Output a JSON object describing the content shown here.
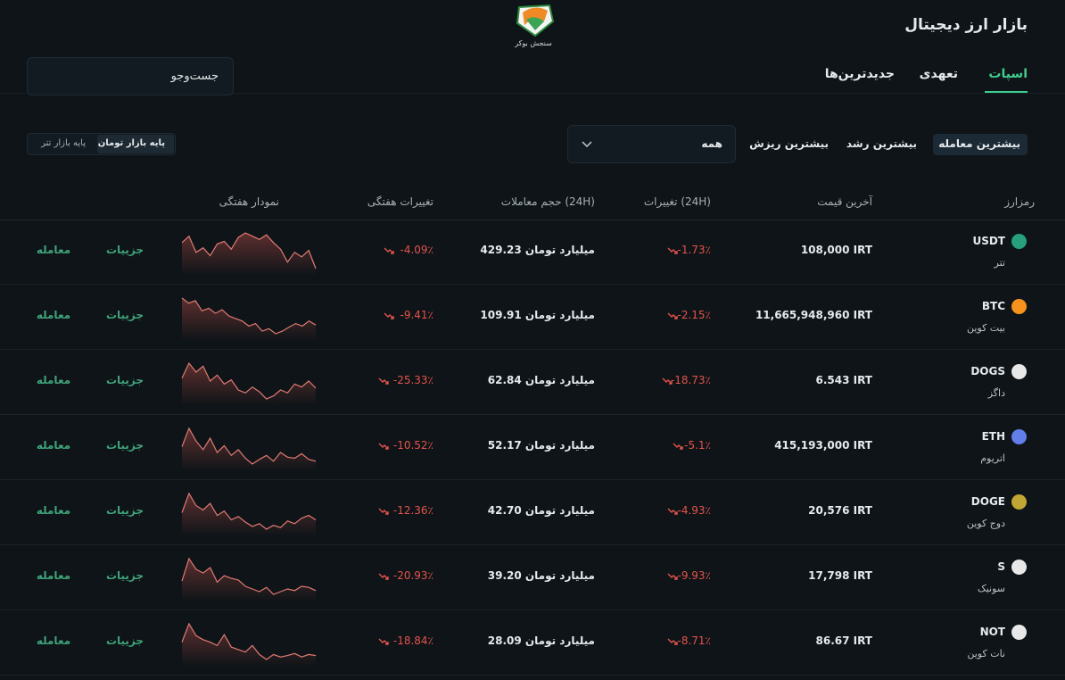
{
  "header": {
    "logo_text": "سنجش بوکر",
    "title": "بازار ارز دیجیتال"
  },
  "tabs": [
    "اسپات",
    "تعهدی",
    "جدیدترین‌ها"
  ],
  "search": {
    "placeholder": "جست‌وجو"
  },
  "filters": [
    "بیشترین معامله",
    "بیشترین رشد",
    "بیشترین ریزش"
  ],
  "dropdown": {
    "selected": "همه"
  },
  "market_toggle": [
    "پایه بازار تومان",
    "پایه بازار تتر"
  ],
  "table": {
    "headers": [
      "رمزارز",
      "آخرین قیمت",
      "تغییرات (24H)",
      "حجم معاملات (24H)",
      "تغییرات هفتگی",
      "نمودار هفتگی"
    ],
    "actions": {
      "details": "جزییات",
      "trade": "معامله"
    },
    "rows": [
      {
        "symbol": "USDT",
        "name": "تتر",
        "price": "108,000 IRT",
        "change": "-1.73٪",
        "volume": "429.23 میلیارد تومان",
        "weekly": "-4.09٪",
        "sparkline": [
          70,
          80,
          55,
          62,
          50,
          68,
          72,
          60,
          78,
          85,
          80,
          75,
          82,
          70,
          60,
          40,
          55,
          48,
          58,
          30
        ]
      },
      {
        "symbol": "BTC",
        "name": "بیت کوین",
        "price": "11,665,948,960 IRT",
        "change": "-2.15٪",
        "volume": "109.91 میلیارد تومان",
        "weekly": "-9.41٪",
        "sparkline": [
          85,
          75,
          80,
          60,
          65,
          55,
          62,
          50,
          45,
          40,
          30,
          35,
          20,
          25,
          15,
          20,
          28,
          35,
          30,
          40,
          32
        ]
      },
      {
        "symbol": "DOGS",
        "name": "داگز",
        "price": "6.543 IRT",
        "change": "-18.73٪",
        "volume": "62.84 میلیارد تومان",
        "weekly": "-25.33٪",
        "sparkline": [
          65,
          90,
          75,
          85,
          60,
          70,
          55,
          62,
          45,
          40,
          50,
          42,
          30,
          35,
          45,
          40,
          55,
          50,
          60,
          48
        ]
      },
      {
        "symbol": "ETH",
        "name": "اتریوم",
        "price": "415,193,000 IRT",
        "change": "-5.1٪",
        "volume": "52.17 میلیارد تومان",
        "weekly": "-10.52٪",
        "sparkline": [
          60,
          92,
          70,
          55,
          75,
          50,
          62,
          45,
          55,
          40,
          30,
          38,
          45,
          35,
          50,
          42,
          40,
          48,
          38,
          35
        ]
      },
      {
        "symbol": "DOGE",
        "name": "دوج کوین",
        "price": "20,576 IRT",
        "change": "-4.93٪",
        "volume": "42.70 میلیارد تومان",
        "weekly": "-12.36٪",
        "sparkline": [
          55,
          90,
          68,
          60,
          72,
          50,
          58,
          42,
          48,
          38,
          30,
          35,
          25,
          32,
          28,
          40,
          35,
          45,
          50,
          42
        ]
      },
      {
        "symbol": "S",
        "name": "سونیک",
        "price": "17,798 IRT",
        "change": "-9.93٪",
        "volume": "39.20 میلیارد تومان",
        "weekly": "-20.93٪",
        "sparkline": [
          50,
          92,
          72,
          65,
          75,
          48,
          60,
          55,
          52,
          40,
          35,
          30,
          38,
          25,
          30,
          35,
          32,
          40,
          38,
          32
        ]
      },
      {
        "symbol": "NOT",
        "name": "نات کوین",
        "price": "86.67 IRT",
        "change": "-8.71٪",
        "volume": "28.09 میلیارد تومان",
        "weekly": "-18.84٪",
        "sparkline": [
          55,
          92,
          68,
          60,
          55,
          48,
          70,
          45,
          40,
          35,
          48,
          30,
          20,
          30,
          25,
          28,
          32,
          25,
          30,
          28
        ]
      }
    ]
  }
}
